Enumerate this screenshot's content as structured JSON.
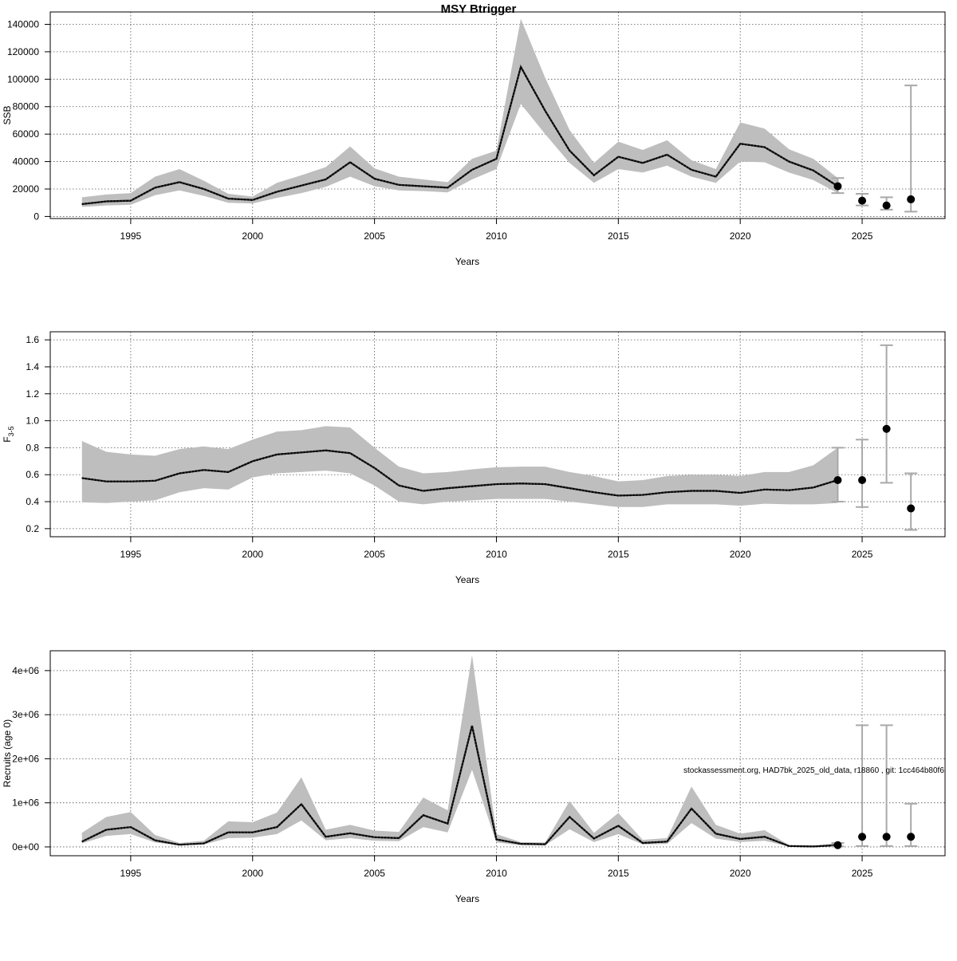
{
  "title": "MSY Btrigger",
  "footnote": "stockassessment.org, HAD7bk_2025_old_data, r18860 , git: 1cc464b80f6",
  "colors": {
    "band": "#bebebe",
    "line": "#000000",
    "forecast_bar": "#a9a9a9",
    "grid": "#555555",
    "axis": "#000000"
  },
  "chart_data": [
    {
      "type": "line",
      "xlabel": "Years",
      "ylabel": "SSB",
      "xlim": [
        1991.7,
        2028.4
      ],
      "ylim": [
        -1500,
        149000
      ],
      "xticks": [
        1995,
        2000,
        2005,
        2010,
        2015,
        2020,
        2025
      ],
      "yticks": [
        0,
        20000,
        40000,
        60000,
        80000,
        100000,
        120000,
        140000
      ],
      "ytick_labels": [
        "0",
        "20000",
        "40000",
        "60000",
        "80000",
        "100000",
        "120000",
        "140000"
      ],
      "grid": true,
      "x": [
        1993,
        1994,
        1995,
        1996,
        1997,
        1998,
        1999,
        2000,
        2001,
        2002,
        2003,
        2004,
        2005,
        2006,
        2007,
        2008,
        2009,
        2010,
        2011,
        2012,
        2013,
        2014,
        2015,
        2016,
        2017,
        2018,
        2019,
        2020,
        2021,
        2022,
        2023,
        2024
      ],
      "estimate": [
        9000,
        11000,
        11500,
        21000,
        25000,
        20000,
        13000,
        12000,
        18000,
        22500,
        27000,
        39500,
        27500,
        23000,
        22000,
        21000,
        34000,
        42000,
        109000,
        77000,
        48000,
        30000,
        43500,
        39000,
        45000,
        34000,
        29000,
        53000,
        50500,
        40000,
        33500,
        22000
      ],
      "lower": [
        7000,
        8000,
        8500,
        15500,
        19000,
        15000,
        10000,
        9500,
        13500,
        17000,
        21500,
        29000,
        22000,
        19000,
        18500,
        17500,
        27000,
        34500,
        82000,
        60000,
        39000,
        24500,
        34500,
        32000,
        37000,
        29000,
        24500,
        40000,
        39500,
        32000,
        26500,
        17000
      ],
      "upper": [
        14000,
        16000,
        17000,
        29000,
        34500,
        26000,
        16500,
        14500,
        24500,
        30000,
        36000,
        51000,
        35000,
        29000,
        27000,
        25000,
        42000,
        48000,
        144000,
        101000,
        63000,
        39000,
        54500,
        48500,
        55500,
        41000,
        34500,
        68500,
        64000,
        49000,
        42000,
        28000
      ],
      "forecast": [
        {
          "x": 2024,
          "median": 22000,
          "low": 17000,
          "high": 28000
        },
        {
          "x": 2025,
          "median": 11500,
          "low": 8000,
          "high": 16500
        },
        {
          "x": 2026,
          "median": 8000,
          "low": 5000,
          "high": 14000
        },
        {
          "x": 2027,
          "median": 12500,
          "low": 3500,
          "high": 95500
        }
      ]
    },
    {
      "type": "line",
      "xlabel": "Years",
      "ylabel": "F",
      "ylabel_sub": "3-5",
      "xlim": [
        1991.7,
        2028.4
      ],
      "ylim": [
        0.14,
        1.66
      ],
      "xticks": [
        1995,
        2000,
        2005,
        2010,
        2015,
        2020,
        2025
      ],
      "yticks": [
        0.2,
        0.4,
        0.6,
        0.8,
        1.0,
        1.2,
        1.4,
        1.6
      ],
      "ytick_labels": [
        "0.2",
        "0.4",
        "0.6",
        "0.8",
        "1.0",
        "1.2",
        "1.4",
        "1.6"
      ],
      "grid": true,
      "x": [
        1993,
        1994,
        1995,
        1996,
        1997,
        1998,
        1999,
        2000,
        2001,
        2002,
        2003,
        2004,
        2005,
        2006,
        2007,
        2008,
        2009,
        2010,
        2011,
        2012,
        2013,
        2014,
        2015,
        2016,
        2017,
        2018,
        2019,
        2020,
        2021,
        2022,
        2023,
        2024
      ],
      "estimate": [
        0.575,
        0.55,
        0.55,
        0.555,
        0.61,
        0.635,
        0.62,
        0.7,
        0.75,
        0.765,
        0.78,
        0.76,
        0.65,
        0.52,
        0.48,
        0.5,
        0.515,
        0.53,
        0.535,
        0.53,
        0.5,
        0.47,
        0.445,
        0.45,
        0.47,
        0.48,
        0.48,
        0.465,
        0.49,
        0.485,
        0.505,
        0.56
      ],
      "lower": [
        0.395,
        0.39,
        0.4,
        0.41,
        0.47,
        0.5,
        0.49,
        0.58,
        0.61,
        0.62,
        0.63,
        0.61,
        0.52,
        0.4,
        0.38,
        0.4,
        0.41,
        0.42,
        0.42,
        0.42,
        0.4,
        0.38,
        0.36,
        0.36,
        0.38,
        0.38,
        0.38,
        0.37,
        0.385,
        0.38,
        0.38,
        0.39
      ],
      "upper": [
        0.85,
        0.77,
        0.75,
        0.74,
        0.79,
        0.81,
        0.79,
        0.86,
        0.92,
        0.93,
        0.96,
        0.95,
        0.8,
        0.66,
        0.61,
        0.62,
        0.64,
        0.655,
        0.66,
        0.66,
        0.62,
        0.59,
        0.55,
        0.56,
        0.59,
        0.6,
        0.6,
        0.59,
        0.62,
        0.62,
        0.67,
        0.8
      ],
      "forecast": [
        {
          "x": 2024,
          "median": 0.56,
          "low": 0.4,
          "high": 0.8
        },
        {
          "x": 2025,
          "median": 0.56,
          "low": 0.36,
          "high": 0.86
        },
        {
          "x": 2026,
          "median": 0.94,
          "low": 0.54,
          "high": 1.56
        },
        {
          "x": 2027,
          "median": 0.35,
          "low": 0.19,
          "high": 0.61
        }
      ]
    },
    {
      "type": "line",
      "xlabel": "Years",
      "ylabel": "Recruits (age 0)",
      "xlim": [
        1991.7,
        2028.4
      ],
      "ylim": [
        -200000,
        4450000
      ],
      "xticks": [
        1995,
        2000,
        2005,
        2010,
        2015,
        2020,
        2025
      ],
      "yticks": [
        0,
        1000000,
        2000000,
        3000000,
        4000000
      ],
      "ytick_labels": [
        "0e+00",
        "1e+06",
        "2e+06",
        "3e+06",
        "4e+06"
      ],
      "grid": true,
      "x": [
        1993,
        1994,
        1995,
        1996,
        1997,
        1998,
        1999,
        2000,
        2001,
        2002,
        2003,
        2004,
        2005,
        2006,
        2007,
        2008,
        2009,
        2010,
        2011,
        2012,
        2013,
        2014,
        2015,
        2016,
        2017,
        2018,
        2019,
        2020,
        2021,
        2022,
        2023,
        2024
      ],
      "estimate": [
        120000,
        390000,
        450000,
        150000,
        50000,
        80000,
        330000,
        330000,
        450000,
        970000,
        230000,
        310000,
        220000,
        200000,
        720000,
        530000,
        2750000,
        170000,
        70000,
        60000,
        680000,
        190000,
        480000,
        90000,
        120000,
        870000,
        300000,
        180000,
        230000,
        20000,
        10000,
        40000
      ],
      "lower": [
        80000,
        250000,
        290000,
        100000,
        35000,
        55000,
        200000,
        210000,
        290000,
        600000,
        150000,
        200000,
        140000,
        130000,
        450000,
        330000,
        1750000,
        100000,
        40000,
        35000,
        400000,
        110000,
        290000,
        55000,
        70000,
        540000,
        190000,
        110000,
        140000,
        10000,
        5000,
        20000
      ],
      "upper": [
        320000,
        680000,
        790000,
        270000,
        90000,
        140000,
        580000,
        560000,
        780000,
        1580000,
        390000,
        500000,
        370000,
        340000,
        1120000,
        830000,
        4350000,
        290000,
        110000,
        100000,
        1040000,
        320000,
        770000,
        160000,
        200000,
        1370000,
        500000,
        300000,
        380000,
        40000,
        20000,
        90000
      ],
      "forecast": [
        {
          "x": 2024,
          "median": 40000,
          "low": 10000,
          "high": 90000
        },
        {
          "x": 2025,
          "median": 230000,
          "low": 20000,
          "high": 2760000
        },
        {
          "x": 2026,
          "median": 230000,
          "low": 20000,
          "high": 2760000
        },
        {
          "x": 2027,
          "median": 230000,
          "low": 20000,
          "high": 980000
        }
      ]
    }
  ]
}
